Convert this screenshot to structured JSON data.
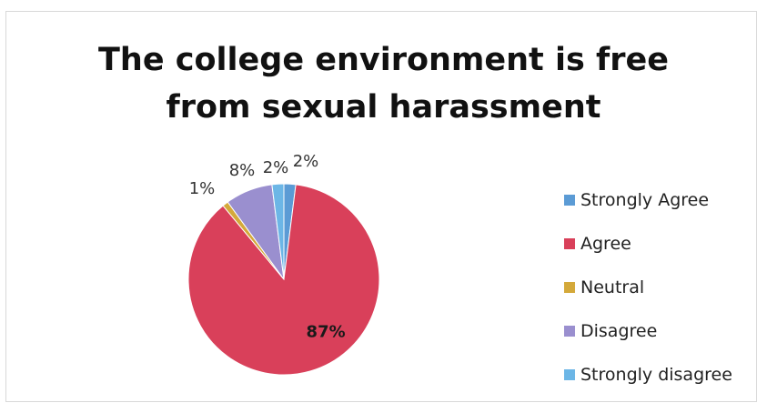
{
  "chart_data": {
    "type": "pie",
    "title": "The college environment is free from sexual harassment",
    "title_lines": [
      "The college environment is free",
      "from sexual harassment"
    ],
    "categories": [
      "Strongly Agree",
      "Agree",
      "Neutral",
      "Disagree",
      "Strongly disagree"
    ],
    "values": [
      2,
      87,
      1,
      8,
      2
    ],
    "data_labels": [
      "2%",
      "87%",
      "1%",
      "8%",
      "2%"
    ],
    "colors": [
      "#5b9bd5",
      "#d9405a",
      "#d4a93a",
      "#9a8fcf",
      "#6cb6e6"
    ],
    "legend_position": "right"
  }
}
